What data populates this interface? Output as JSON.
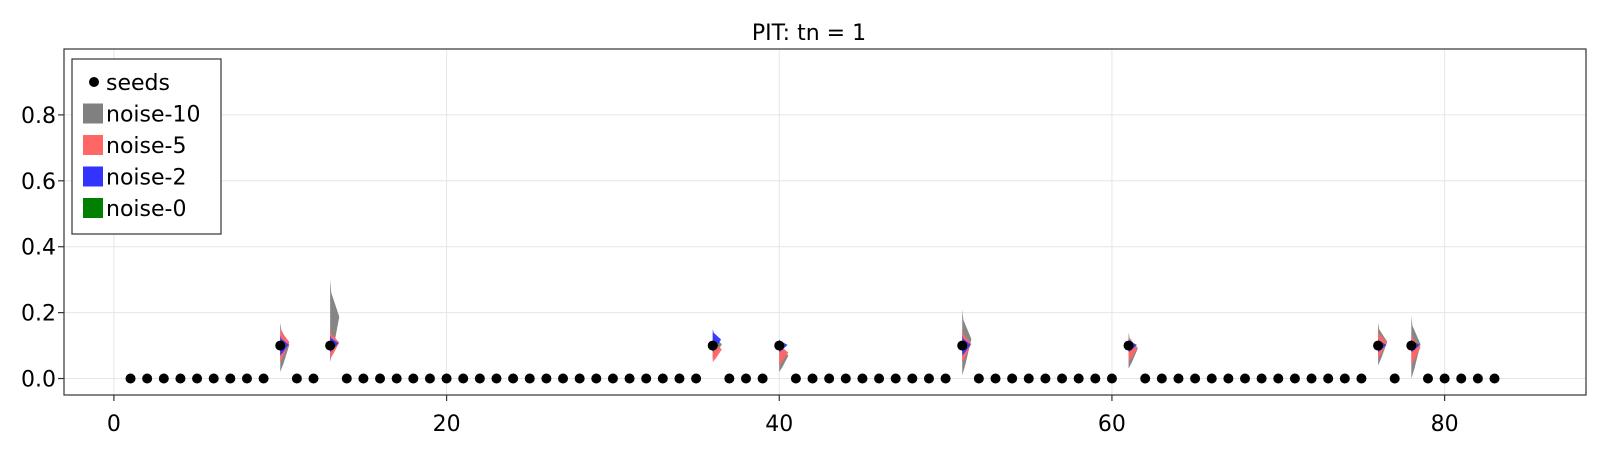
{
  "chart_data": {
    "type": "scatter",
    "title": "PIT: tn = 1",
    "xlabel": "",
    "ylabel": "",
    "xlim": [
      -3,
      88.5
    ],
    "ylim": [
      -0.05,
      1.0
    ],
    "x_ticks": [
      0,
      20,
      40,
      60,
      80
    ],
    "x_tick_labels": [
      "0",
      "20",
      "40",
      "60",
      "80"
    ],
    "y_ticks": [
      0.0,
      0.2,
      0.4,
      0.6,
      0.8
    ],
    "y_tick_labels": [
      "0.0",
      "0.2",
      "0.4",
      "0.6",
      "0.8"
    ],
    "grid": true,
    "legend_position": "top-left",
    "legend": [
      {
        "label": "seeds",
        "marker": "dot",
        "color": "#000000"
      },
      {
        "label": "noise-10",
        "marker": "square",
        "color": "#808080"
      },
      {
        "label": "noise-5",
        "marker": "square",
        "color": "#ff6666"
      },
      {
        "label": "noise-2",
        "marker": "square",
        "color": "#3333ff"
      },
      {
        "label": "noise-0",
        "marker": "square",
        "color": "#008000"
      }
    ],
    "seeds": {
      "name": "seeds",
      "x": [
        1,
        2,
        3,
        4,
        5,
        6,
        7,
        8,
        9,
        10,
        11,
        12,
        13,
        14,
        15,
        16,
        17,
        18,
        19,
        20,
        21,
        22,
        23,
        24,
        25,
        26,
        27,
        28,
        29,
        30,
        31,
        32,
        33,
        34,
        35,
        36,
        37,
        38,
        39,
        40,
        41,
        42,
        43,
        44,
        45,
        46,
        47,
        48,
        49,
        50,
        51,
        52,
        53,
        54,
        55,
        56,
        57,
        58,
        59,
        60,
        61,
        62,
        63,
        64,
        65,
        66,
        67,
        68,
        69,
        70,
        71,
        72,
        73,
        74,
        75,
        76,
        77,
        78,
        79,
        80,
        81,
        82,
        83
      ],
      "y": [
        0,
        0,
        0,
        0,
        0,
        0,
        0,
        0,
        0,
        0.1,
        0,
        0,
        0.1,
        0,
        0,
        0,
        0,
        0,
        0,
        0,
        0,
        0,
        0,
        0,
        0,
        0,
        0,
        0,
        0,
        0,
        0,
        0,
        0,
        0,
        0,
        0.1,
        0,
        0,
        0,
        0.1,
        0,
        0,
        0,
        0,
        0,
        0,
        0,
        0,
        0,
        0,
        0.1,
        0,
        0,
        0,
        0,
        0,
        0,
        0,
        0,
        0,
        0.1,
        0,
        0,
        0,
        0,
        0,
        0,
        0,
        0,
        0,
        0,
        0,
        0,
        0,
        0,
        0.1,
        0,
        0.1,
        0,
        0,
        0,
        0,
        0
      ]
    },
    "distributions": [
      {
        "x": 10,
        "noise_10": [
          0.02,
          0.17
        ],
        "noise_5": [
          0.05,
          0.16
        ],
        "noise_2": [
          0.07,
          0.13
        ],
        "noise_0": [
          0.09,
          0.11
        ]
      },
      {
        "x": 13,
        "noise_10": [
          0.05,
          0.3
        ],
        "noise_5": [
          0.06,
          0.15
        ],
        "noise_2": [
          0.08,
          0.13
        ],
        "noise_0": [
          0.09,
          0.11
        ]
      },
      {
        "x": 36,
        "noise_10": [
          0.06,
          0.14
        ],
        "noise_5": [
          0.05,
          0.12
        ],
        "noise_2": [
          0.08,
          0.15
        ],
        "noise_0": [
          0.09,
          0.11
        ]
      },
      {
        "x": 40,
        "noise_10": [
          0.02,
          0.11
        ],
        "noise_5": [
          0.04,
          0.11
        ],
        "noise_2": [
          0.08,
          0.12
        ],
        "noise_0": [
          0.09,
          0.11
        ]
      },
      {
        "x": 51,
        "noise_10": [
          0.01,
          0.21
        ],
        "noise_5": [
          0.05,
          0.15
        ],
        "noise_2": [
          0.07,
          0.13
        ],
        "noise_0": [
          0.09,
          0.11
        ]
      },
      {
        "x": 61,
        "noise_10": [
          0.03,
          0.14
        ],
        "noise_5": [
          0.05,
          0.13
        ],
        "noise_2": [
          0.08,
          0.12
        ],
        "noise_0": [
          0.09,
          0.11
        ]
      },
      {
        "x": 76,
        "noise_10": [
          0.04,
          0.17
        ],
        "noise_5": [
          0.06,
          0.15
        ],
        "noise_2": [
          0.08,
          0.12
        ],
        "noise_0": [
          0.09,
          0.11
        ]
      },
      {
        "x": 78,
        "noise_10": [
          0.0,
          0.19
        ],
        "noise_5": [
          0.04,
          0.14
        ],
        "noise_2": [
          0.08,
          0.12
        ],
        "noise_0": [
          0.09,
          0.11
        ]
      }
    ]
  }
}
